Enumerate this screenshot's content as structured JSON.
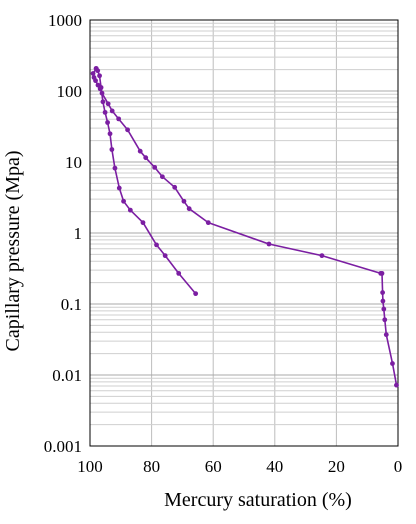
{
  "chart_data": {
    "type": "line",
    "xlabel": "Mercury saturation (%)",
    "ylabel": "Capillary pressure (Mpa)",
    "x_reversed": true,
    "xlim": [
      100,
      0
    ],
    "ylim": [
      0.001,
      1000
    ],
    "y_scale": "log",
    "x_ticks": [
      100,
      80,
      60,
      40,
      20,
      0
    ],
    "x_tick_labels": [
      "100",
      "80",
      "60",
      "40",
      "20",
      "0"
    ],
    "y_ticks": [
      0.001,
      0.01,
      0.1,
      1,
      10,
      100,
      1000
    ],
    "y_tick_labels": [
      "0.001",
      "0.01",
      "0.1",
      "1",
      "10",
      "100",
      "1000"
    ],
    "grid": true,
    "grid_minor_y": true,
    "color": "#7b1ea2",
    "series": [
      {
        "x": [
          0.5,
          1.8,
          3.8,
          4.3,
          4.6,
          4.9,
          5.0,
          5.2,
          5.6,
          24.7,
          41.9,
          61.6,
          67.8,
          69.5,
          72.5,
          76.5,
          79.0,
          81.9,
          83.7,
          87.8,
          90.7,
          92.8,
          94.1,
          96.1,
          96.7,
          97.4,
          98.2,
          98.7,
          99.0,
          98.0
        ],
        "y": [
          0.0072,
          0.0145,
          0.037,
          0.06,
          0.085,
          0.11,
          0.145,
          0.27,
          0.27,
          0.48,
          0.7,
          1.4,
          2.2,
          2.8,
          4.4,
          6.2,
          8.4,
          11.5,
          14.2,
          28.4,
          40.5,
          52.4,
          66.1,
          93.2,
          107.2,
          121.0,
          140.0,
          155.0,
          176.5,
          207.5
        ]
      },
      {
        "x": [
          98.0,
          97.5,
          96.9,
          96.4,
          95.8,
          95.1,
          94.3,
          93.5,
          92.9,
          91.9,
          90.5,
          89.1,
          86.9,
          82.8,
          78.4,
          75.6,
          71.2,
          65.7
        ],
        "y": [
          207.5,
          193.5,
          164.0,
          112.0,
          70.5,
          50.0,
          36.0,
          25.0,
          15.0,
          8.2,
          4.3,
          2.8,
          2.1,
          1.4,
          0.68,
          0.48,
          0.27,
          0.14
        ]
      }
    ]
  }
}
